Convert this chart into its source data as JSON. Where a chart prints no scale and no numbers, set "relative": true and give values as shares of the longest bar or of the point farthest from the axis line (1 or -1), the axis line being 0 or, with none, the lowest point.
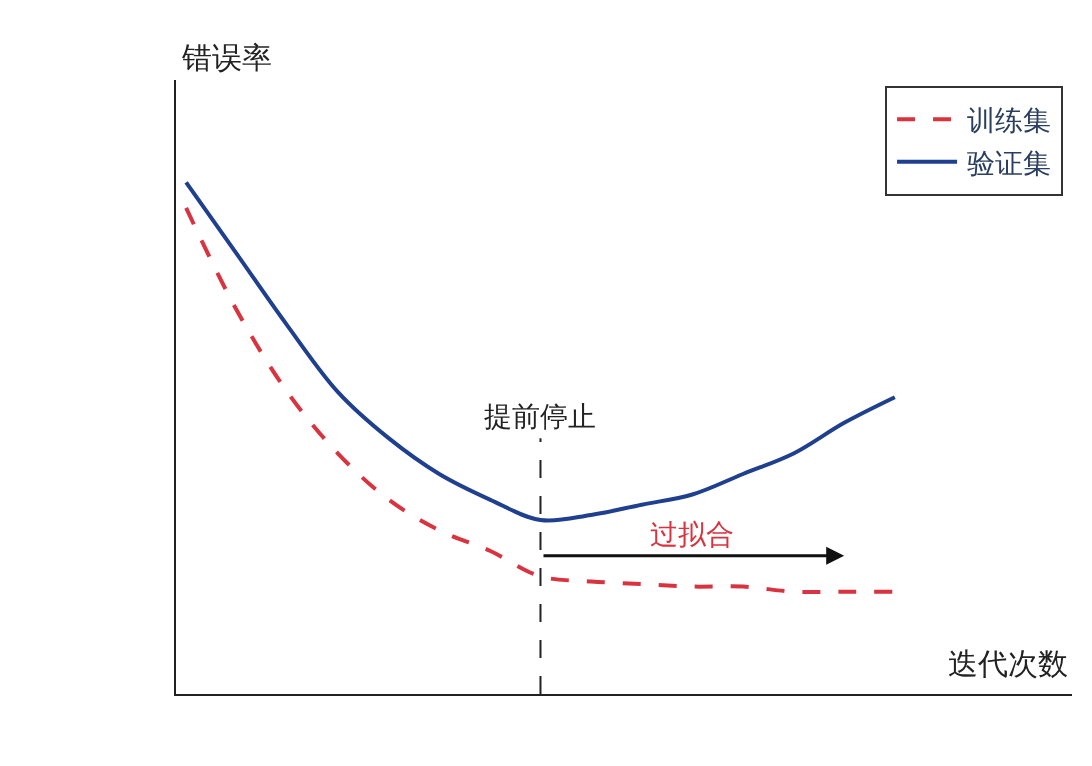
{
  "chart_data": {
    "type": "line",
    "relative": true,
    "xlabel": "迭代次数",
    "ylabel": "错误率",
    "categories": [
      null,
      null,
      null,
      null,
      null,
      null,
      null,
      null,
      null,
      null,
      null,
      null,
      null,
      null,
      null
    ],
    "series": [
      {
        "name": "训练集",
        "color": "#d9333f",
        "line_style": "dashed",
        "values": [
          0.95,
          0.75,
          0.59,
          0.47,
          0.38,
          0.32,
          0.28,
          0.23,
          0.22,
          0.215,
          0.21,
          0.21,
          0.2,
          0.2,
          0.2
        ]
      },
      {
        "name": "验证集",
        "color": "#1f3f8f",
        "line_style": "solid",
        "values": [
          1.0,
          0.86,
          0.72,
          0.59,
          0.5,
          0.43,
          0.38,
          0.34,
          0.35,
          0.37,
          0.39,
          0.43,
          0.47,
          0.53,
          0.58
        ]
      }
    ],
    "annotations": [
      "提前停止",
      "过拟合"
    ],
    "legend": "top right"
  }
}
